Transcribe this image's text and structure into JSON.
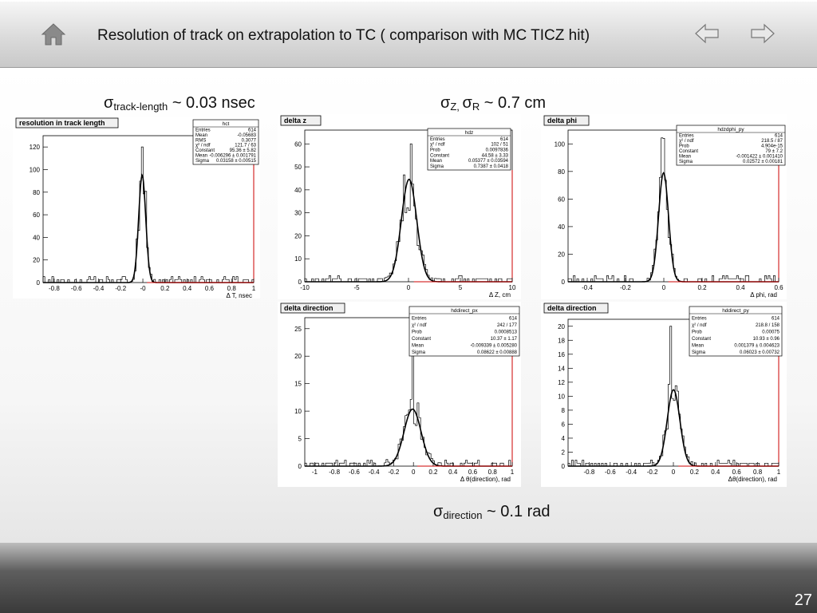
{
  "header": {
    "title": "Resolution of track on extrapolation to TC ( comparison with MC TICZ hit)",
    "home_icon": "home-icon",
    "prev_icon": "arrow-left-icon",
    "next_icon": "arrow-right-icon"
  },
  "annotations": {
    "track_length": {
      "sym": "σ",
      "sub": "track-length",
      "rest": " ~ 0.03 nsec"
    },
    "z_r": {
      "sym": "σ",
      "sub1": "Z, ",
      "sym2": "σ",
      "sub2": "R",
      "rest": " ~ 0.7 cm"
    },
    "direction": {
      "sym": "σ",
      "sub": "direction",
      "rest": " ~ 0.1 rad"
    }
  },
  "footer": {
    "page_number": "27"
  },
  "chart_data": [
    {
      "type": "histogram",
      "title": "resolution in track length",
      "xlabel": "Δ T, nsec",
      "xlim": [
        -0.9,
        1.0
      ],
      "ylim": [
        0,
        130
      ],
      "xticks": [
        "-0.8",
        "-0.6",
        "-0.4",
        "-0.2",
        "-0",
        "0.2",
        "0.4",
        "0.6",
        "0.8",
        "1"
      ],
      "yticks": [
        "0",
        "20",
        "40",
        "60",
        "80",
        "100",
        "120"
      ],
      "peak_x": 0.0,
      "peak_y": 120,
      "fit_amp": 95,
      "fit_mean": -0.006,
      "fit_sigma": 0.032,
      "stats": {
        "name": "hct",
        "rows": [
          [
            "Entries",
            "614"
          ],
          [
            "Mean",
            "-0.05683"
          ],
          [
            "RMS",
            "0.3077"
          ],
          [
            "χ² / ndf",
            "121.7 / 63"
          ],
          [
            "Constant",
            "95.36 ± 5.82"
          ],
          [
            "Mean",
            "-0.006296 ± 0.001791"
          ],
          [
            "Sigma",
            "0.03158 ± 0.00515"
          ]
        ]
      }
    },
    {
      "type": "histogram",
      "title": "delta z",
      "xlabel": "Δ Z, cm",
      "xlim": [
        -10,
        10
      ],
      "ylim": [
        0,
        66
      ],
      "xticks": [
        "-10",
        "-5",
        "0",
        "5",
        "10"
      ],
      "yticks": [
        "0",
        "10",
        "20",
        "30",
        "40",
        "50",
        "60"
      ],
      "peak_x": 0.3,
      "peak_y": 60,
      "fit_amp": 44.58,
      "fit_mean": 0.054,
      "fit_sigma": 0.74,
      "stats": {
        "name": "hdz",
        "rows": [
          [
            "Entries",
            "614"
          ],
          [
            "χ² / ndf",
            "102 / 51"
          ],
          [
            "Prob",
            "0.0097836"
          ],
          [
            "Constant",
            "44.58 ± 3.33"
          ],
          [
            "Mean",
            "0.05377 ± 0.03594"
          ],
          [
            "Sigma",
            "0.7387 ± 0.0418"
          ]
        ]
      }
    },
    {
      "type": "histogram",
      "title": "delta phi",
      "xlabel": "Δ phi, rad",
      "xlim": [
        -0.5,
        0.6
      ],
      "ylim": [
        0,
        110
      ],
      "xticks": [
        "-0.4",
        "-0.2",
        "0",
        "0.2",
        "0.4",
        "0.6"
      ],
      "yticks": [
        "0",
        "20",
        "40",
        "60",
        "80",
        "100"
      ],
      "peak_x": 0.0,
      "peak_y": 104,
      "fit_amp": 79,
      "fit_mean": -0.0014,
      "fit_sigma": 0.026,
      "stats": {
        "name": "hdzdphi_py",
        "rows": [
          [
            "Entries",
            "614"
          ],
          [
            "χ² / ndf",
            "218.5 / 87"
          ],
          [
            "Prob",
            "4.904e-15"
          ],
          [
            "Constant",
            "79 ± 7.2"
          ],
          [
            "Mean",
            "-0.001422 ± 0.001410"
          ],
          [
            "Sigma",
            "0.02572 ± 0.00181"
          ]
        ]
      }
    },
    {
      "type": "histogram",
      "title": "delta direction",
      "xlabel": "Δ θ(direction), rad",
      "xlim": [
        -1.1,
        1.0
      ],
      "ylim": [
        0,
        27
      ],
      "xticks": [
        "-1",
        "-0.8",
        "-0.6",
        "-0.4",
        "-0.2",
        "0",
        "0.2",
        "0.4",
        "0.6",
        "0.8",
        "1"
      ],
      "yticks": [
        "0",
        "5",
        "10",
        "15",
        "20",
        "25"
      ],
      "peak_x": 0.0,
      "peak_y": 25,
      "fit_amp": 10.37,
      "fit_mean": -0.009,
      "fit_sigma": 0.086,
      "stats": {
        "name": "hddirect_px",
        "rows": [
          [
            "Entries",
            "614"
          ],
          [
            "χ² / ndf",
            "242 / 177"
          ],
          [
            "Prob",
            "0.0008513"
          ],
          [
            "Constant",
            "10.37 ± 1.17"
          ],
          [
            "Mean",
            "-0.009339 ± 0.005280"
          ],
          [
            "Sigma",
            "0.08622 ± 0.00888"
          ]
        ]
      }
    },
    {
      "type": "histogram",
      "title": "delta direction",
      "xlabel": "Δθ(direction), rad",
      "xlim": [
        -1.0,
        1.0
      ],
      "ylim": [
        0,
        21
      ],
      "xticks": [
        "-0.8",
        "-0.6",
        "-0.4",
        "-0.2",
        "0",
        "0.2",
        "0.4",
        "0.6",
        "0.8",
        "1"
      ],
      "yticks": [
        "0",
        "2",
        "4",
        "6",
        "8",
        "10",
        "12",
        "14",
        "16",
        "18",
        "20"
      ],
      "peak_x": -0.02,
      "peak_y": 20,
      "fit_amp": 10.93,
      "fit_mean": 0.0014,
      "fit_sigma": 0.06,
      "stats": {
        "name": "hddirect_py",
        "rows": [
          [
            "Entries",
            "614"
          ],
          [
            "χ² / ndf",
            "218.8 / 158"
          ],
          [
            "Prob",
            "0.00075"
          ],
          [
            "Constant",
            "10.93 ± 0.96"
          ],
          [
            "Mean",
            "0.001379 ± 0.004623"
          ],
          [
            "Sigma",
            "0.06023 ± 0.00732"
          ]
        ]
      }
    }
  ]
}
